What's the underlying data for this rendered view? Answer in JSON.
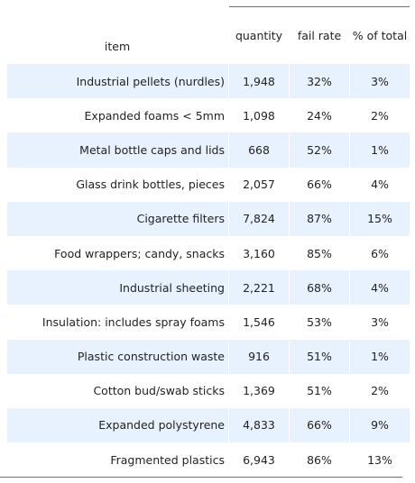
{
  "table": {
    "columns": {
      "item": "item",
      "quantity": "quantity",
      "fail_rate": "fail rate",
      "pct_total": "% of total"
    },
    "rows": [
      {
        "item": "Industrial pellets (nurdles)",
        "quantity": "1,948",
        "fail_rate": "32%",
        "pct_total": "3%"
      },
      {
        "item": "Expanded foams < 5mm",
        "quantity": "1,098",
        "fail_rate": "24%",
        "pct_total": "2%"
      },
      {
        "item": "Metal bottle caps and lids",
        "quantity": "668",
        "fail_rate": "52%",
        "pct_total": "1%"
      },
      {
        "item": "Glass drink bottles, pieces",
        "quantity": "2,057",
        "fail_rate": "66%",
        "pct_total": "4%"
      },
      {
        "item": "Cigarette filters",
        "quantity": "7,824",
        "fail_rate": "87%",
        "pct_total": "15%"
      },
      {
        "item": "Food wrappers; candy, snacks",
        "quantity": "3,160",
        "fail_rate": "85%",
        "pct_total": "6%"
      },
      {
        "item": "Industrial sheeting",
        "quantity": "2,221",
        "fail_rate": "68%",
        "pct_total": "4%"
      },
      {
        "item": "Insulation: includes spray foams",
        "quantity": "1,546",
        "fail_rate": "53%",
        "pct_total": "3%"
      },
      {
        "item": "Plastic construction waste",
        "quantity": "916",
        "fail_rate": "51%",
        "pct_total": "1%"
      },
      {
        "item": "Cotton bud/swab sticks",
        "quantity": "1,369",
        "fail_rate": "51%",
        "pct_total": "2%"
      },
      {
        "item": "Expanded polystyrene",
        "quantity": "4,833",
        "fail_rate": "66%",
        "pct_total": "9%"
      },
      {
        "item": "Fragmented plastics",
        "quantity": "6,943",
        "fail_rate": "86%",
        "pct_total": "13%"
      }
    ]
  },
  "colors": {
    "rule": "#2a8f96",
    "row_shade": "#e8f2fe",
    "text": "#222222"
  }
}
